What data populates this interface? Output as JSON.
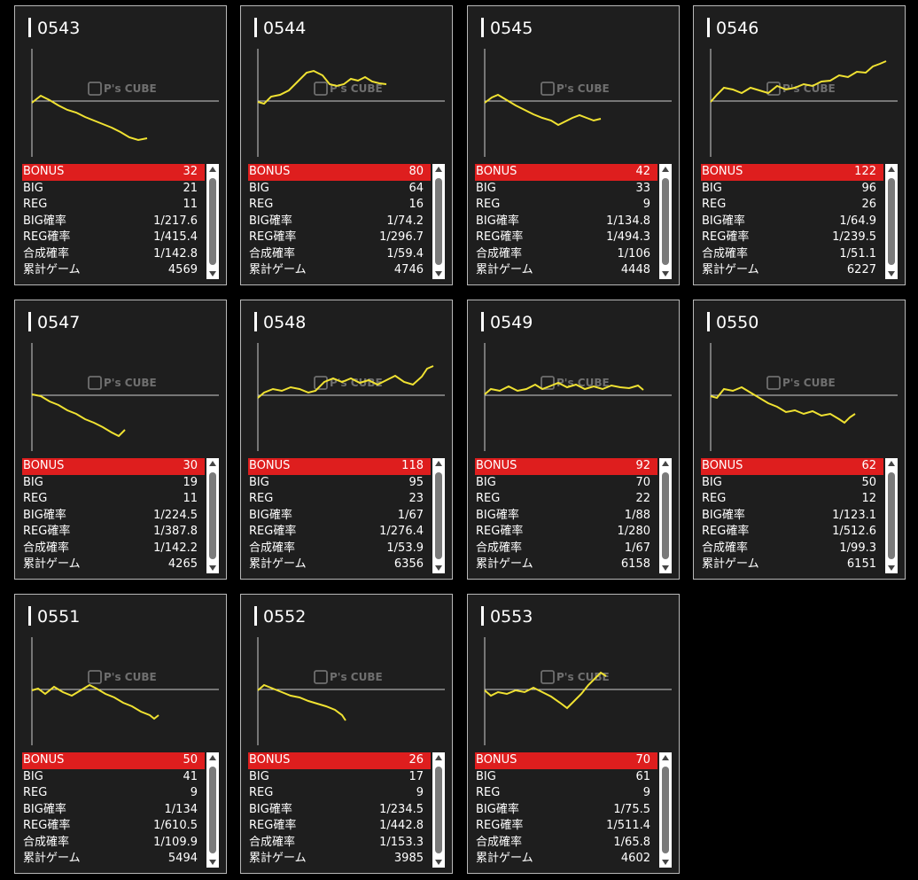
{
  "labels": {
    "bonus": "BONUS",
    "big": "BIG",
    "reg": "REG",
    "big_rate": "BIG確率",
    "reg_rate": "REG確率",
    "combined_rate": "合成確率",
    "total_games": "累計ゲーム"
  },
  "watermark": {
    "brand": "P's CUBE"
  },
  "colors": {
    "line": "#f0e232",
    "bonus_bg": "#de1e1e",
    "card_bg": "#1e1e1e"
  },
  "machines": [
    {
      "id": "0543",
      "bonus": "32",
      "big": "21",
      "reg": "11",
      "big_rate": "1/217.6",
      "reg_rate": "1/415.4",
      "combined_rate": "1/142.8",
      "total_games": "4569"
    },
    {
      "id": "0544",
      "bonus": "80",
      "big": "64",
      "reg": "16",
      "big_rate": "1/74.2",
      "reg_rate": "1/296.7",
      "combined_rate": "1/59.4",
      "total_games": "4746"
    },
    {
      "id": "0545",
      "bonus": "42",
      "big": "33",
      "reg": "9",
      "big_rate": "1/134.8",
      "reg_rate": "1/494.3",
      "combined_rate": "1/106",
      "total_games": "4448"
    },
    {
      "id": "0546",
      "bonus": "122",
      "big": "96",
      "reg": "26",
      "big_rate": "1/64.9",
      "reg_rate": "1/239.5",
      "combined_rate": "1/51.1",
      "total_games": "6227"
    },
    {
      "id": "0547",
      "bonus": "30",
      "big": "19",
      "reg": "11",
      "big_rate": "1/224.5",
      "reg_rate": "1/387.8",
      "combined_rate": "1/142.2",
      "total_games": "4265"
    },
    {
      "id": "0548",
      "bonus": "118",
      "big": "95",
      "reg": "23",
      "big_rate": "1/67",
      "reg_rate": "1/276.4",
      "combined_rate": "1/53.9",
      "total_games": "6356"
    },
    {
      "id": "0549",
      "bonus": "92",
      "big": "70",
      "reg": "22",
      "big_rate": "1/88",
      "reg_rate": "1/280",
      "combined_rate": "1/67",
      "total_games": "6158"
    },
    {
      "id": "0550",
      "bonus": "62",
      "big": "50",
      "reg": "12",
      "big_rate": "1/123.1",
      "reg_rate": "1/512.6",
      "combined_rate": "1/99.3",
      "total_games": "6151"
    },
    {
      "id": "0551",
      "bonus": "50",
      "big": "41",
      "reg": "9",
      "big_rate": "1/134",
      "reg_rate": "1/610.5",
      "combined_rate": "1/109.9",
      "total_games": "5494"
    },
    {
      "id": "0552",
      "bonus": "26",
      "big": "17",
      "reg": "9",
      "big_rate": "1/234.5",
      "reg_rate": "1/442.8",
      "combined_rate": "1/153.3",
      "total_games": "3985"
    },
    {
      "id": "0553",
      "bonus": "70",
      "big": "61",
      "reg": "9",
      "big_rate": "1/75.5",
      "reg_rate": "1/511.4",
      "combined_rate": "1/65.8",
      "total_games": "4602"
    }
  ]
}
